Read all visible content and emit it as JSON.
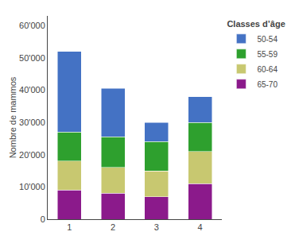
{
  "chart_data": {
    "type": "bar",
    "stacked": true,
    "categories": [
      "1",
      "2",
      "3",
      "4"
    ],
    "series": [
      {
        "name": "65-70",
        "color": "#8b1a8b",
        "values": [
          9000,
          8000,
          7000,
          11000
        ]
      },
      {
        "name": "60-64",
        "color": "#c8c870",
        "values": [
          9000,
          8000,
          8000,
          10000
        ]
      },
      {
        "name": "55-59",
        "color": "#2ea02e",
        "values": [
          9000,
          9500,
          9000,
          9000
        ]
      },
      {
        "name": "50-54",
        "color": "#4472c4",
        "values": [
          25000,
          15000,
          6000,
          8000
        ]
      }
    ],
    "ylabel": "Nombre de mammos",
    "legend_title": "Classes d’âge",
    "legend": "right",
    "ylim": [
      0,
      63000
    ],
    "yticks": [
      0,
      {
        "value": 10000,
        "label": "10'000"
      },
      {
        "value": 20000,
        "label": "20'000"
      },
      {
        "value": 30000,
        "label": "30'000"
      },
      {
        "value": 40000,
        "label": "40'000"
      },
      {
        "value": 50000,
        "label": "50'000"
      },
      {
        "value": 60000,
        "label": "60'000"
      }
    ],
    "grid": false
  }
}
